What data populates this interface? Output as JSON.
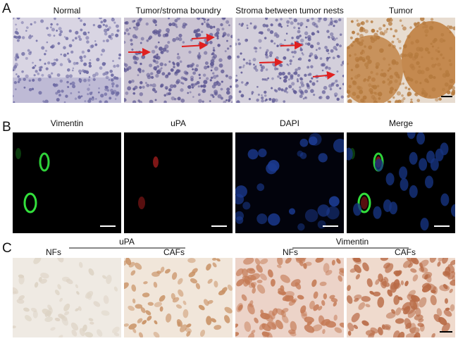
{
  "panel_a": {
    "label": "A",
    "titles": [
      "Normal",
      "Tumor/stroma boundry",
      "Stroma between tumor nests",
      "Tumor"
    ]
  },
  "panel_b": {
    "label": "B",
    "titles": [
      "Vimentin",
      "uPA",
      "DAPI",
      "Merge"
    ]
  },
  "panel_c": {
    "label": "C",
    "groups": [
      {
        "title": "uPA",
        "left": "NFs",
        "right": "CAFs"
      },
      {
        "title": "Vimentin",
        "left": "NFs",
        "right": "CAFs"
      }
    ]
  }
}
